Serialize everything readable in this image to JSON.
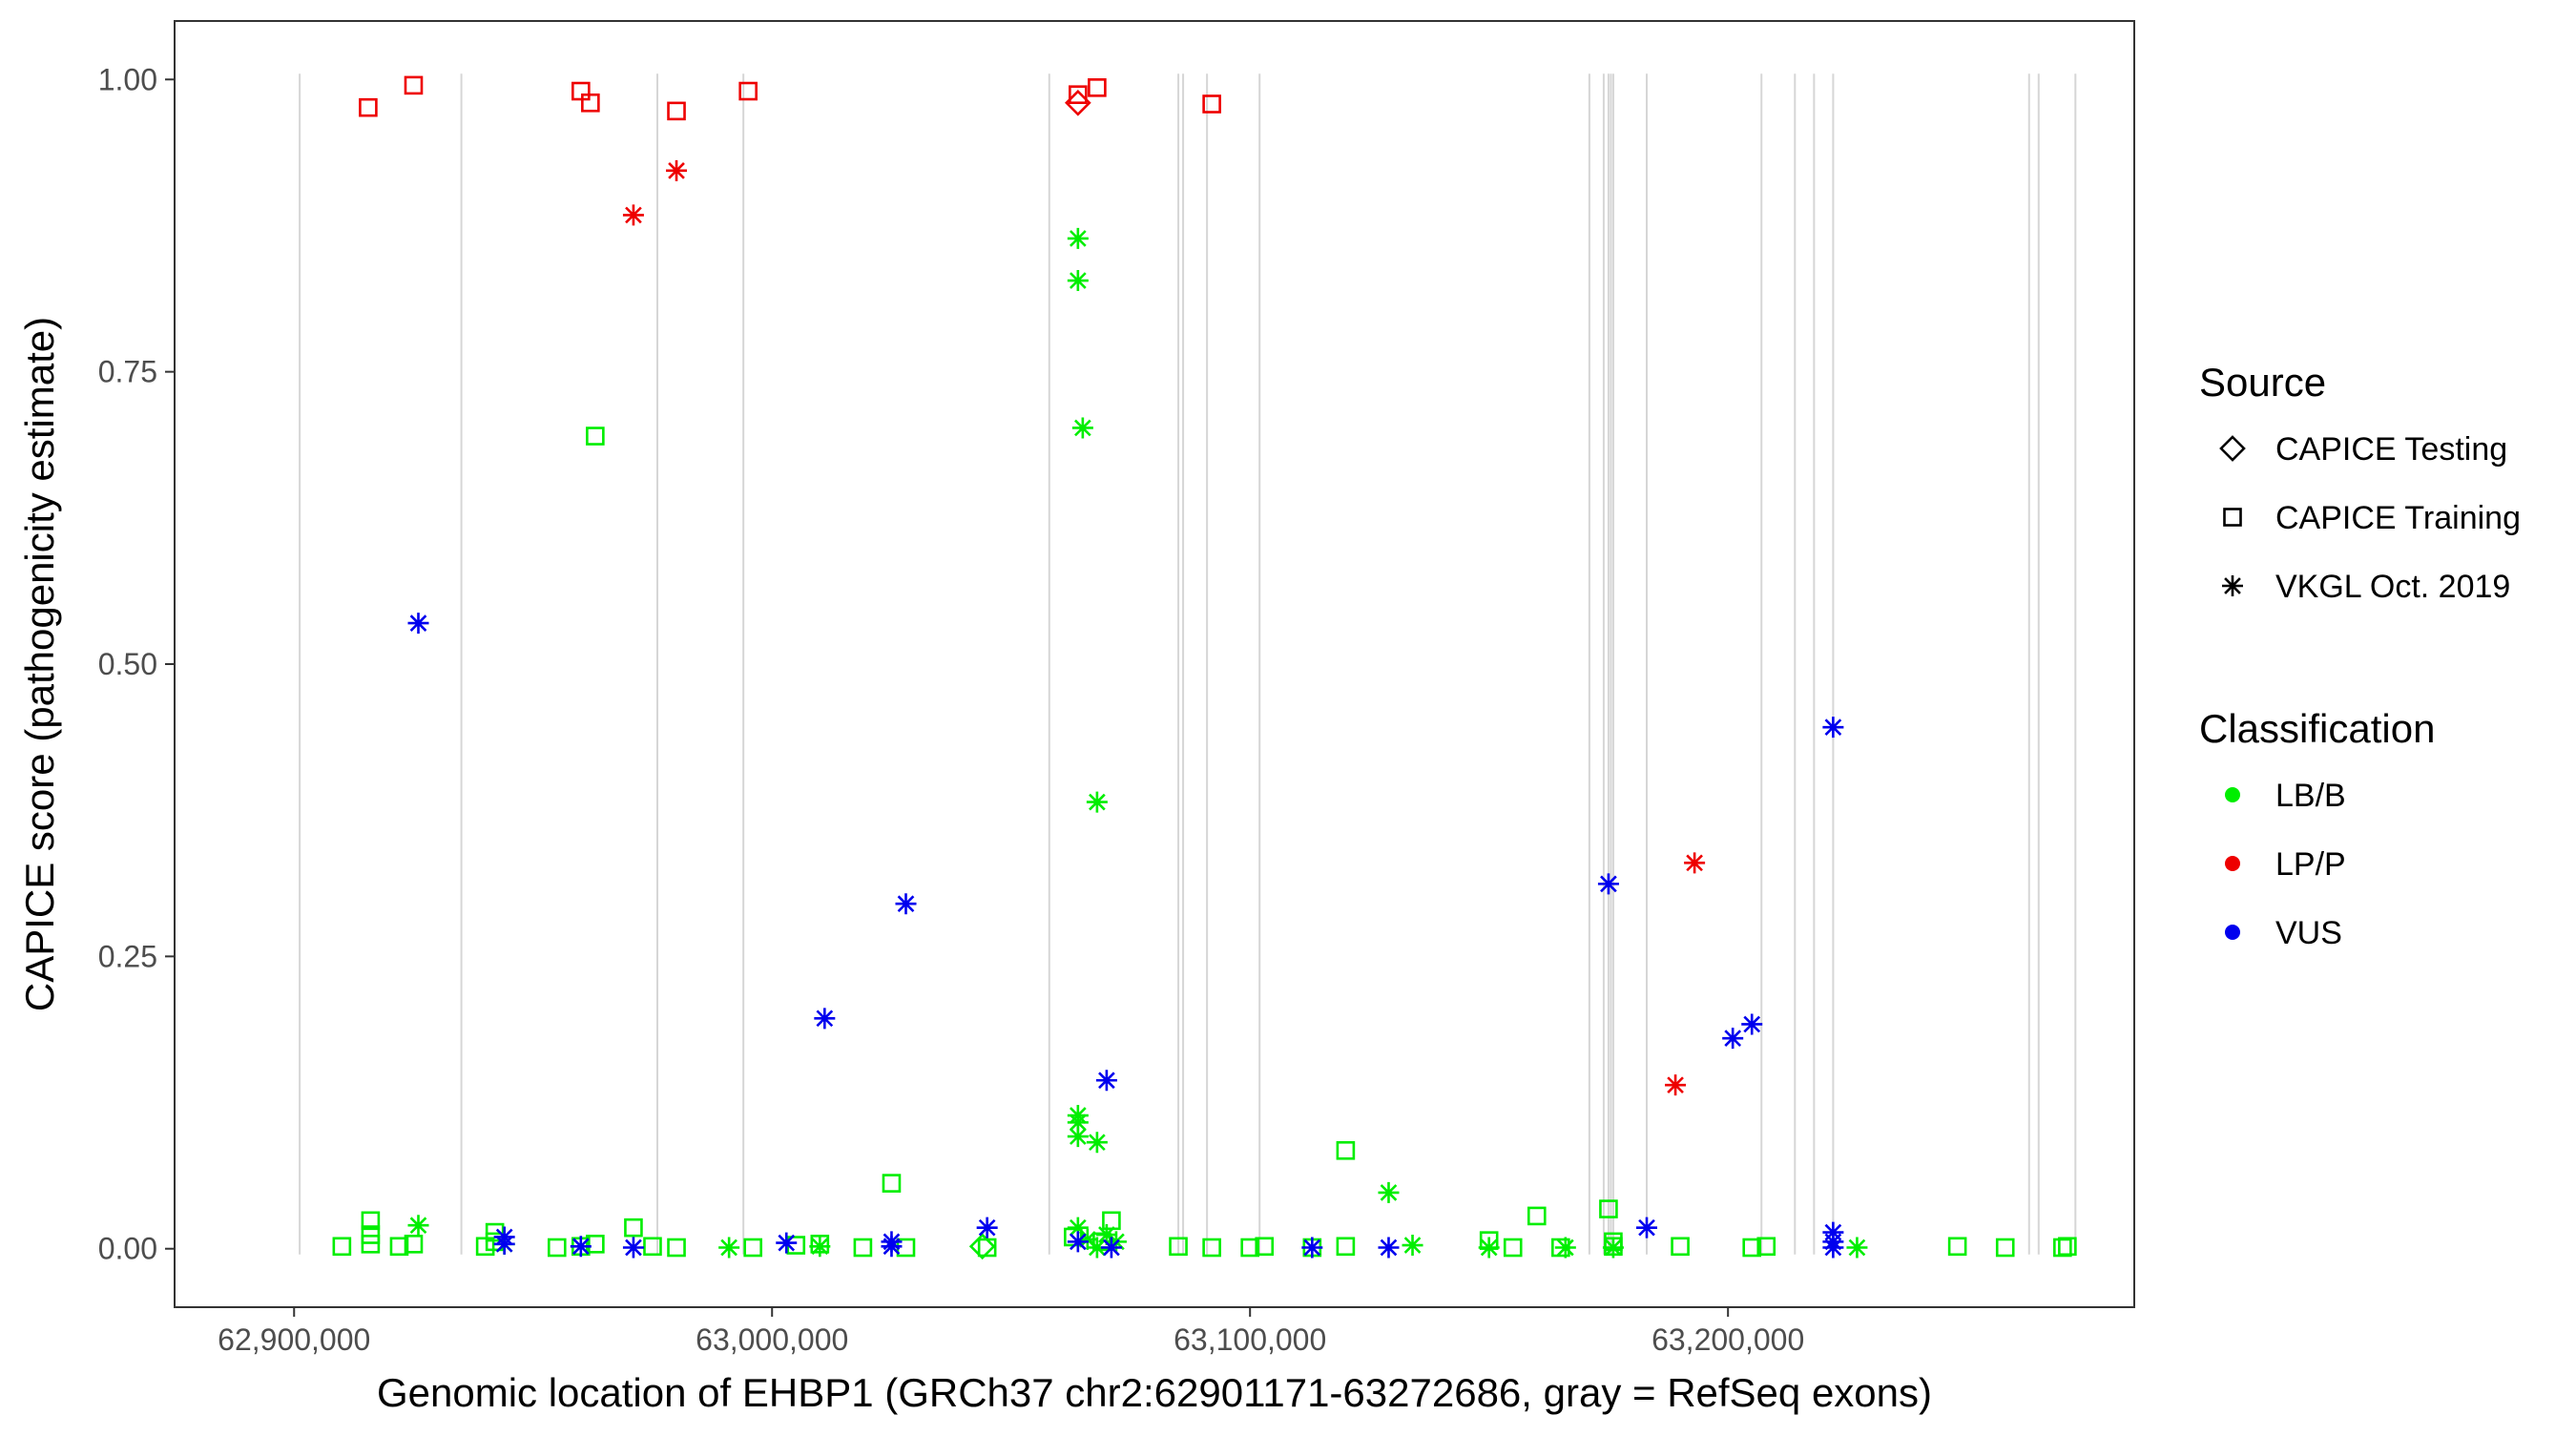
{
  "chart_data": {
    "type": "scatter",
    "xlabel": "Genomic location of EHBP1 (GRCh37 chr2:62901171-63272686, gray = RefSeq exons)",
    "ylabel": "CAPICE score (pathogenicity estimate)",
    "xlim": [
      62875000,
      63285000
    ],
    "ylim": [
      -0.05,
      1.05
    ],
    "x_ticks": [
      {
        "value": 62900000,
        "label": "62,900,000"
      },
      {
        "value": 63000000,
        "label": "63,000,000"
      },
      {
        "value": 63100000,
        "label": "63,100,000"
      },
      {
        "value": 63200000,
        "label": "63,200,000"
      }
    ],
    "y_ticks": [
      {
        "value": 0,
        "label": "0.00"
      },
      {
        "value": 0.25,
        "label": "0.25"
      },
      {
        "value": 0.5,
        "label": "0.50"
      },
      {
        "value": 0.75,
        "label": "0.75"
      },
      {
        "value": 1,
        "label": "1.00"
      }
    ],
    "grid": false,
    "exons": [
      62901171,
      62935000,
      62976000,
      62994000,
      63058000,
      63085000,
      63086000,
      63091000,
      63102000,
      63171000,
      63174000,
      63175000,
      63175500,
      63176000,
      63183000,
      63207000,
      63214000,
      63218000,
      63222000,
      63263000,
      63265000,
      63272686
    ],
    "legend": {
      "position": "right",
      "source_title": "Source",
      "source_items": [
        {
          "label": "CAPICE Testing",
          "shape": "diamond"
        },
        {
          "label": "CAPICE Training",
          "shape": "square"
        },
        {
          "label": "VKGL Oct. 2019",
          "shape": "asterisk"
        }
      ],
      "class_title": "Classification",
      "class_items": [
        {
          "label": "LB/B",
          "color": "#00ee00"
        },
        {
          "label": "LP/P",
          "color": "#ee0000"
        },
        {
          "label": "VUS",
          "color": "#0000ee"
        }
      ]
    },
    "colors": {
      "LB/B": "#00ee00",
      "LP/P": "#ee0000",
      "VUS": "#0000ee"
    },
    "series": [
      {
        "classification": "LP/P",
        "source": "CAPICE Training",
        "shape": "square",
        "points": [
          [
            62915500,
            0.976
          ],
          [
            62925000,
            0.995
          ],
          [
            62960000,
            0.99
          ],
          [
            62962000,
            0.98
          ],
          [
            62980000,
            0.973
          ],
          [
            62995000,
            0.99
          ],
          [
            63064000,
            0.987
          ],
          [
            63068000,
            0.993
          ],
          [
            63092000,
            0.979
          ]
        ]
      },
      {
        "classification": "LP/P",
        "source": "CAPICE Testing",
        "shape": "diamond",
        "points": [
          [
            63064000,
            0.98
          ]
        ]
      },
      {
        "classification": "LP/P",
        "source": "VKGL Oct. 2019",
        "shape": "asterisk",
        "points": [
          [
            62971000,
            0.884
          ],
          [
            62980000,
            0.922
          ],
          [
            63189000,
            0.14
          ],
          [
            63193000,
            0.33
          ]
        ]
      },
      {
        "classification": "LB/B",
        "source": "CAPICE Training",
        "shape": "square",
        "points": [
          [
            62910000,
            0.002
          ],
          [
            62916000,
            0.024
          ],
          [
            62916000,
            0.012
          ],
          [
            62916000,
            0.004
          ],
          [
            62922000,
            0.002
          ],
          [
            62925000,
            0.004
          ],
          [
            62940000,
            0.002
          ],
          [
            62942000,
            0.014
          ],
          [
            62942000,
            0.006
          ],
          [
            62955000,
            0.001
          ],
          [
            62960000,
            0.002
          ],
          [
            62963000,
            0.004
          ],
          [
            62963000,
            0.695
          ],
          [
            62971000,
            0.018
          ],
          [
            62975000,
            0.002
          ],
          [
            62980000,
            0.001
          ],
          [
            62996000,
            0.001
          ],
          [
            63005000,
            0.003
          ],
          [
            63010000,
            0.004
          ],
          [
            63019000,
            0.001
          ],
          [
            63025000,
            0.056
          ],
          [
            63028000,
            0.001
          ],
          [
            63045000,
            0.001
          ],
          [
            63063000,
            0.01
          ],
          [
            63069000,
            0.006
          ],
          [
            63071000,
            0.024
          ],
          [
            63085000,
            0.002
          ],
          [
            63092000,
            0.001
          ],
          [
            63100000,
            0.001
          ],
          [
            63103000,
            0.002
          ],
          [
            63113000,
            0.001
          ],
          [
            63120000,
            0.084
          ],
          [
            63120000,
            0.002
          ],
          [
            63150000,
            0.007
          ],
          [
            63155000,
            0.001
          ],
          [
            63160000,
            0.028
          ],
          [
            63165000,
            0.001
          ],
          [
            63175000,
            0.034
          ],
          [
            63176000,
            0.006
          ],
          [
            63176000,
            0.002
          ],
          [
            63190000,
            0.002
          ],
          [
            63205000,
            0.001
          ],
          [
            63208000,
            0.002
          ],
          [
            63248000,
            0.002
          ],
          [
            63258000,
            0.001
          ],
          [
            63270000,
            0.001
          ],
          [
            63271000,
            0.002
          ]
        ]
      },
      {
        "classification": "LB/B",
        "source": "CAPICE Testing",
        "shape": "diamond",
        "points": [
          [
            63044000,
            0.002
          ]
        ]
      },
      {
        "classification": "LB/B",
        "source": "VKGL Oct. 2019",
        "shape": "asterisk",
        "points": [
          [
            62926000,
            0.02
          ],
          [
            62944000,
            0.004
          ],
          [
            62991000,
            0.001
          ],
          [
            63010000,
            0.002
          ],
          [
            63064000,
            0.864
          ],
          [
            63064000,
            0.828
          ],
          [
            63065000,
            0.702
          ],
          [
            63068000,
            0.382
          ],
          [
            63064000,
            0.114
          ],
          [
            63064000,
            0.108
          ],
          [
            63064000,
            0.096
          ],
          [
            63068000,
            0.091
          ],
          [
            63064000,
            0.018
          ],
          [
            63066000,
            0.008
          ],
          [
            63070000,
            0.012
          ],
          [
            63072000,
            0.006
          ],
          [
            63068000,
            0.001
          ],
          [
            63129000,
            0.048
          ],
          [
            63134000,
            0.003
          ],
          [
            63150000,
            0.001
          ],
          [
            63166000,
            0.001
          ],
          [
            63176000,
            0.001
          ],
          [
            63227000,
            0.001
          ]
        ]
      },
      {
        "classification": "VUS",
        "source": "VKGL Oct. 2019",
        "shape": "asterisk",
        "points": [
          [
            62926000,
            0.535
          ],
          [
            62944000,
            0.01
          ],
          [
            62944000,
            0.004
          ],
          [
            62960000,
            0.002
          ],
          [
            62971000,
            0.001
          ],
          [
            63003000,
            0.005
          ],
          [
            63011000,
            0.197
          ],
          [
            63025000,
            0.006
          ],
          [
            63025000,
            0.002
          ],
          [
            63028000,
            0.295
          ],
          [
            63045000,
            0.018
          ],
          [
            63064000,
            0.006
          ],
          [
            63070000,
            0.144
          ],
          [
            63071000,
            0.001
          ],
          [
            63113000,
            0.001
          ],
          [
            63129000,
            0.001
          ],
          [
            63175000,
            0.312
          ],
          [
            63183000,
            0.018
          ],
          [
            63201000,
            0.18
          ],
          [
            63205000,
            0.192
          ],
          [
            63222000,
            0.446
          ],
          [
            63222000,
            0.014
          ],
          [
            63222000,
            0.006
          ],
          [
            63222000,
            0.001
          ]
        ]
      }
    ]
  }
}
